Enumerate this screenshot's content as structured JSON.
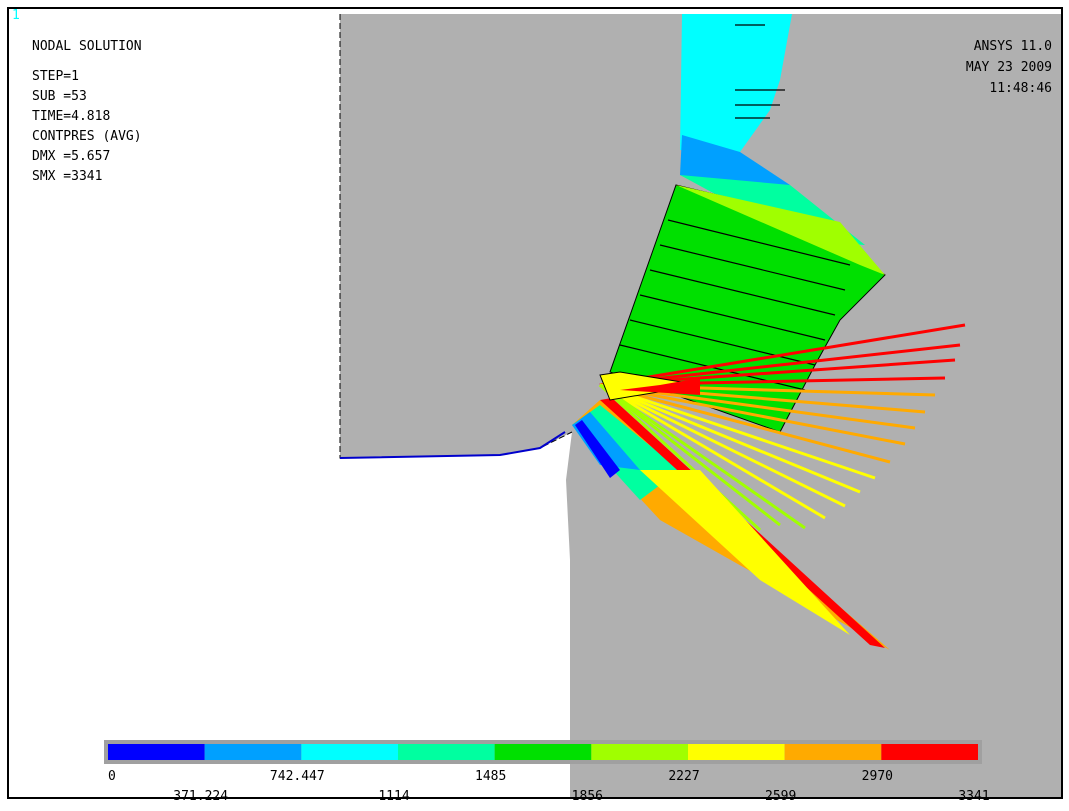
{
  "window_number": "1",
  "info": [
    "NODAL SOLUTION",
    "STEP=1",
    "SUB =53",
    "TIME=4.818",
    "CONTPRES (AVG)",
    "DMX =5.657",
    "SMX =3341"
  ],
  "stamp": [
    "ANSYS 11.0",
    "MAY 23 2009",
    "11:48:46"
  ],
  "legend": {
    "colors": [
      "#0000ff",
      "#00a0ff",
      "#00ffff",
      "#00ffa0",
      "#00e000",
      "#a0ff00",
      "#ffff00",
      "#ffaa00",
      "#ff0000"
    ],
    "labels": [
      "0",
      "371.224",
      "742.447",
      "1114",
      "1485",
      "1856",
      "2227",
      "2599",
      "2970",
      "3341"
    ]
  }
}
